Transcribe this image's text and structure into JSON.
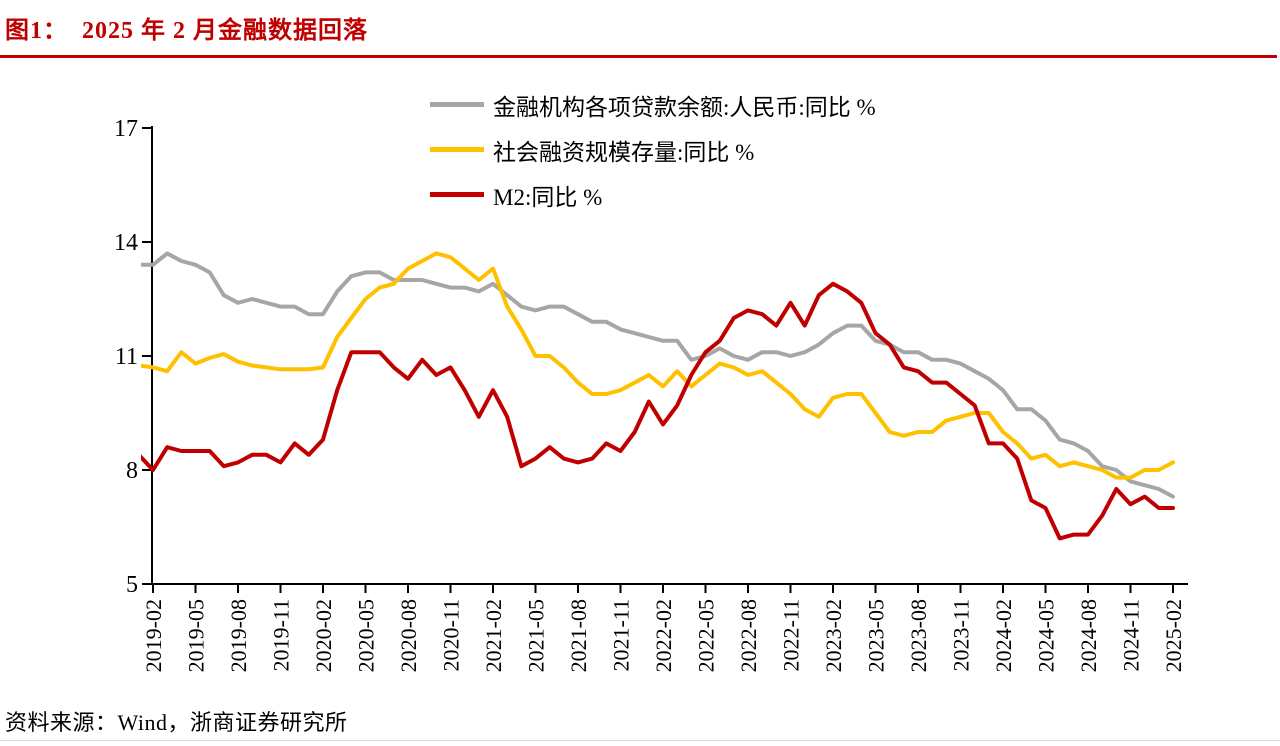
{
  "figure": {
    "title": "图1：  2025 年 2 月金融数据回落",
    "source": "资料来源：Wind，浙商证券研究所",
    "accent_color": "#C00000"
  },
  "chart_data": {
    "type": "line",
    "title": "2025 年 2 月金融数据回落",
    "xlabel": "",
    "ylabel": "",
    "ylim": [
      5,
      17
    ],
    "y_ticks": [
      17,
      14,
      11,
      8,
      5
    ],
    "grid": false,
    "legend_position": "top-center",
    "x_frequency": "monthly",
    "x_start": "2019-01",
    "x_end": "2025-02",
    "x_tick_labels": [
      "2019-02",
      "2019-05",
      "2019-08",
      "2019-11",
      "2020-02",
      "2020-05",
      "2020-08",
      "2020-11",
      "2021-02",
      "2021-05",
      "2021-08",
      "2021-11",
      "2022-02",
      "2022-05",
      "2022-08",
      "2022-11",
      "2023-02",
      "2023-05",
      "2023-08",
      "2023-11",
      "2024-02",
      "2024-05",
      "2024-08",
      "2024-11",
      "2025-02"
    ],
    "series": [
      {
        "name": "金融机构各项贷款余额:人民币:同比 %",
        "color": "#A6A6A6",
        "values": [
          13.4,
          13.4,
          13.7,
          13.5,
          13.4,
          13.2,
          12.6,
          12.4,
          12.5,
          12.4,
          12.3,
          12.3,
          12.1,
          12.1,
          12.7,
          13.1,
          13.2,
          13.2,
          13.0,
          13.0,
          13.0,
          12.9,
          12.8,
          12.8,
          12.7,
          12.9,
          12.6,
          12.3,
          12.2,
          12.3,
          12.3,
          12.1,
          11.9,
          11.9,
          11.7,
          11.6,
          11.5,
          11.4,
          11.4,
          10.9,
          11.0,
          11.2,
          11.0,
          10.9,
          11.1,
          11.1,
          11.0,
          11.1,
          11.3,
          11.6,
          11.8,
          11.8,
          11.4,
          11.3,
          11.1,
          11.1,
          10.9,
          10.9,
          10.8,
          10.6,
          10.4,
          10.1,
          9.6,
          9.6,
          9.3,
          8.8,
          8.7,
          8.5,
          8.1,
          8.0,
          7.7,
          7.6,
          7.5,
          7.3
        ]
      },
      {
        "name": "社会融资规模存量:同比 %",
        "color": "#FFC000",
        "values": [
          10.75,
          10.7,
          10.6,
          11.1,
          10.8,
          10.95,
          11.05,
          10.85,
          10.75,
          10.7,
          10.65,
          10.65,
          10.65,
          10.7,
          11.5,
          12.0,
          12.5,
          12.8,
          12.9,
          13.3,
          13.5,
          13.7,
          13.6,
          13.3,
          13.0,
          13.3,
          12.3,
          11.7,
          11.0,
          11.0,
          10.7,
          10.3,
          10.0,
          10.0,
          10.1,
          10.3,
          10.5,
          10.2,
          10.6,
          10.2,
          10.5,
          10.8,
          10.7,
          10.5,
          10.6,
          10.3,
          10.0,
          9.6,
          9.4,
          9.9,
          10.0,
          10.0,
          9.5,
          9.0,
          8.9,
          9.0,
          9.0,
          9.3,
          9.4,
          9.5,
          9.5,
          9.0,
          8.7,
          8.3,
          8.4,
          8.1,
          8.2,
          8.1,
          8.0,
          7.8,
          7.8,
          8.0,
          8.0,
          8.2
        ]
      },
      {
        "name": "M2:同比 %",
        "color": "#C00000",
        "values": [
          8.4,
          8.0,
          8.6,
          8.5,
          8.5,
          8.5,
          8.1,
          8.2,
          8.4,
          8.4,
          8.2,
          8.7,
          8.4,
          8.8,
          10.1,
          11.1,
          11.1,
          11.1,
          10.7,
          10.4,
          10.9,
          10.5,
          10.7,
          10.1,
          9.4,
          10.1,
          9.4,
          8.1,
          8.3,
          8.6,
          8.3,
          8.2,
          8.3,
          8.7,
          8.5,
          9.0,
          9.8,
          9.2,
          9.7,
          10.5,
          11.1,
          11.4,
          12.0,
          12.2,
          12.1,
          11.8,
          12.4,
          11.8,
          12.6,
          12.9,
          12.7,
          12.4,
          11.6,
          11.3,
          10.7,
          10.6,
          10.3,
          10.3,
          10.0,
          9.7,
          8.7,
          8.7,
          8.3,
          7.2,
          7.0,
          6.2,
          6.3,
          6.3,
          6.8,
          7.5,
          7.1,
          7.3,
          7.0,
          7.0
        ]
      }
    ]
  }
}
